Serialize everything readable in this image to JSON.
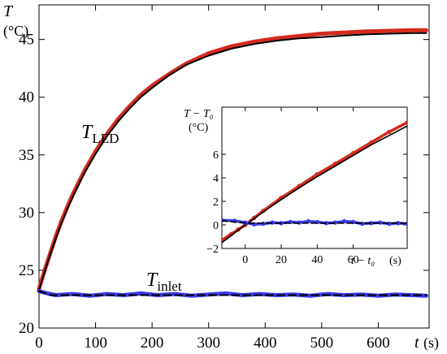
{
  "chart_data": [
    {
      "type": "line",
      "xlabel": "t",
      "xlabel_unit": "(s)",
      "ylabel": "T",
      "ylabel_unit": "(°C)",
      "xlim": [
        0,
        690
      ],
      "ylim": [
        20,
        48
      ],
      "xticks": [
        0,
        100,
        200,
        300,
        400,
        500,
        600
      ],
      "yticks": [
        20,
        25,
        30,
        35,
        40,
        45
      ],
      "grid": false,
      "legend": "none",
      "annotations": [
        {
          "main": "T",
          "sub": "LED"
        },
        {
          "main": "T",
          "sub": "inlet"
        }
      ],
      "series": [
        {
          "name": "T_LED",
          "color": "#d62a1e",
          "x": [
            0,
            10,
            20,
            30,
            40,
            50,
            60,
            80,
            100,
            120,
            140,
            160,
            180,
            200,
            230,
            260,
            300,
            340,
            380,
            420,
            460,
            500,
            540,
            580,
            620,
            660,
            685
          ],
          "values": [
            23.4,
            25.0,
            26.5,
            28.0,
            29.3,
            30.5,
            31.6,
            33.6,
            35.3,
            36.8,
            38.1,
            39.2,
            40.2,
            41.0,
            42.0,
            42.9,
            43.8,
            44.4,
            44.8,
            45.1,
            45.3,
            45.5,
            45.6,
            45.7,
            45.75,
            45.8,
            45.8
          ]
        },
        {
          "name": "T_LED fit",
          "color": "#000000",
          "x": [
            0,
            10,
            20,
            30,
            40,
            50,
            60,
            80,
            100,
            120,
            140,
            160,
            180,
            200,
            230,
            260,
            300,
            340,
            380,
            420,
            460,
            500,
            540,
            580,
            620,
            660,
            685
          ],
          "values": [
            23.3,
            24.9,
            26.4,
            27.8,
            29.1,
            30.3,
            31.4,
            33.4,
            35.1,
            36.6,
            37.9,
            39.0,
            40.0,
            40.8,
            41.9,
            42.8,
            43.6,
            44.2,
            44.6,
            44.9,
            45.1,
            45.2,
            45.35,
            45.45,
            45.5,
            45.55,
            45.55
          ]
        },
        {
          "name": "T_inlet",
          "color": "#3a3ae8",
          "x": [
            0,
            15,
            30,
            60,
            90,
            120,
            150,
            180,
            210,
            240,
            270,
            300,
            330,
            360,
            390,
            420,
            450,
            480,
            510,
            540,
            570,
            600,
            630,
            660,
            685
          ],
          "values": [
            23.2,
            23.0,
            22.85,
            22.95,
            22.8,
            22.95,
            22.85,
            23.0,
            22.85,
            22.95,
            22.8,
            22.9,
            23.0,
            22.85,
            22.95,
            22.85,
            22.9,
            22.8,
            22.95,
            22.85,
            22.9,
            22.8,
            22.9,
            22.85,
            22.8
          ]
        },
        {
          "name": "T_inlet fit",
          "color": "#000000",
          "dashed": true,
          "x": [
            0,
            20,
            685
          ],
          "values": [
            23.2,
            22.85,
            22.85
          ]
        }
      ]
    },
    {
      "type": "line",
      "inset": true,
      "xlabel": "t − t₀",
      "xlabel_unit": "(s)",
      "ylabel": "T − T₀",
      "ylabel_unit": "(°C)",
      "xlim": [
        -13,
        90
      ],
      "ylim": [
        -2,
        10
      ],
      "xticks": [
        0,
        20,
        40,
        60
      ],
      "yticks": [
        -2,
        0,
        2,
        4,
        6
      ],
      "grid": false,
      "series": [
        {
          "name": "LED",
          "color": "#d62a1e",
          "x": [
            -13,
            -8,
            -4,
            0,
            5,
            10,
            20,
            30,
            40,
            50,
            60,
            70,
            80,
            90
          ],
          "values": [
            -1.3,
            -0.8,
            -0.4,
            0.0,
            0.6,
            1.2,
            2.3,
            3.3,
            4.3,
            5.2,
            6.1,
            7.0,
            7.9,
            8.7
          ]
        },
        {
          "name": "LED fit",
          "color": "#000000",
          "x": [
            -13,
            0,
            10,
            20,
            30,
            40,
            50,
            60,
            70,
            80,
            90
          ],
          "values": [
            -1.5,
            0.0,
            1.1,
            2.15,
            3.15,
            4.1,
            5.0,
            5.9,
            6.8,
            7.6,
            8.4
          ]
        },
        {
          "name": "inlet",
          "color": "#3a3ae8",
          "x": [
            -13,
            -6,
            0,
            5,
            10,
            15,
            20,
            25,
            30,
            35,
            40,
            45,
            50,
            55,
            60,
            65,
            70,
            75,
            80,
            85,
            90
          ],
          "values": [
            0.4,
            0.35,
            0.2,
            0.05,
            0.1,
            0.2,
            0.15,
            0.25,
            0.2,
            0.3,
            0.25,
            0.15,
            0.2,
            0.3,
            0.25,
            0.1,
            0.15,
            0.2,
            0.1,
            0.15,
            0.1
          ]
        },
        {
          "name": "inlet fit",
          "color": "#000000",
          "dashed": true,
          "x": [
            -13,
            0,
            90
          ],
          "values": [
            0.35,
            0.15,
            0.15
          ]
        }
      ]
    }
  ]
}
